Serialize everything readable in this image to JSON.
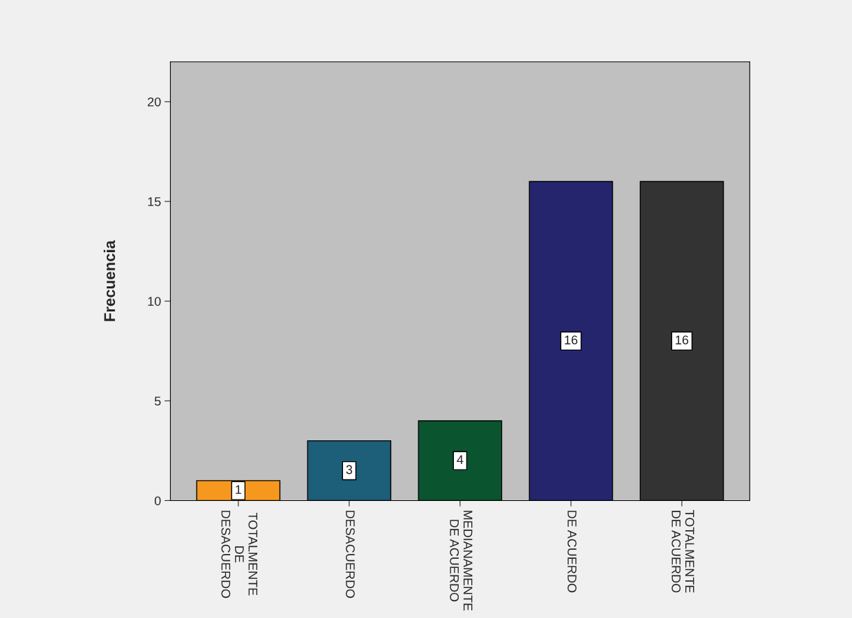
{
  "chart_data": {
    "type": "bar",
    "ylabel": "Frecuencia",
    "categories": [
      "TOTALMENTE\nDE\nDESACUERDO",
      "DESACUERDO",
      "MEDIANAMENTE\nDE ACUERDO",
      "DE ACUERDO",
      "TOTALMENTE\nDE ACUERDO"
    ],
    "values": [
      1,
      3,
      4,
      16,
      16
    ],
    "colors": [
      "#f7981e",
      "#1d5e78",
      "#0b5430",
      "#25256e",
      "#333333"
    ],
    "ylim": [
      0,
      22
    ],
    "yticks": [
      0,
      5,
      10,
      15,
      20
    ],
    "grid": false,
    "legend": false,
    "data_labels": true
  }
}
